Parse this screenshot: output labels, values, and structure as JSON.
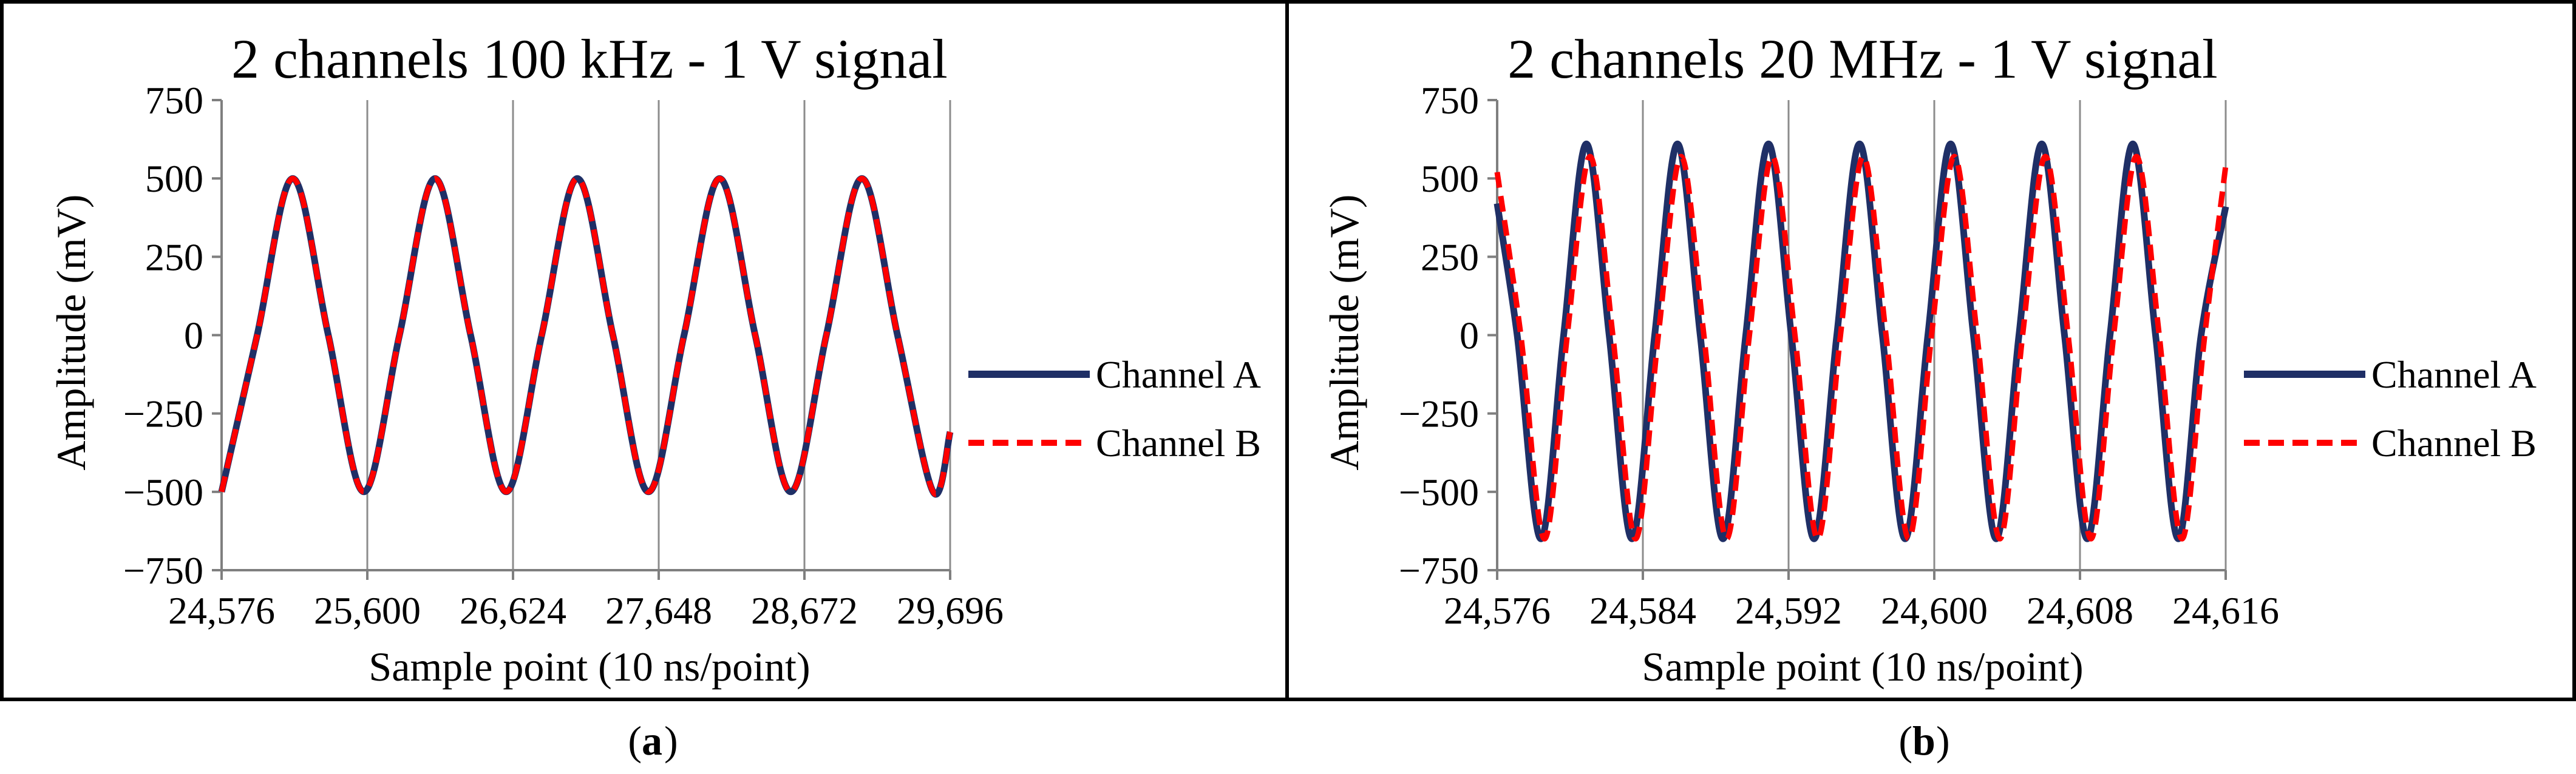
{
  "panel_labels": [
    "a",
    "b"
  ],
  "colors": {
    "channel_a": "#1f2f66",
    "channel_b": "#ff0000",
    "grid": "#8c8c8c",
    "axis": "#7f7f7f",
    "frame": "#000000"
  },
  "chart_data": [
    {
      "type": "line",
      "title": "2 channels 100 kHz - 1 V signal",
      "xlabel": "Sample point (10 ns/point)",
      "ylabel": "Amplitude  (mV)",
      "xlim": [
        24576,
        29696
      ],
      "ylim": [
        -750,
        750
      ],
      "x_ticks": [
        24576,
        25600,
        26624,
        27648,
        28672,
        29696
      ],
      "x_tick_labels": [
        "24,576",
        "25,600",
        "26,624",
        "27,648",
        "28,672",
        "29,696"
      ],
      "y_ticks": [
        750,
        500,
        250,
        0,
        -250,
        -500,
        -750
      ],
      "y_tick_labels": [
        "750",
        "500",
        "250",
        "0",
        "−250",
        "−500",
        "−750"
      ],
      "grid": "vertical",
      "legend": "right",
      "series": [
        {
          "name": "Channel A",
          "color": "#1f2f66",
          "style": "solid",
          "x": [
            24576,
            24826,
            25076,
            25326,
            25576,
            25826,
            26076,
            26326,
            26576,
            26826,
            27076,
            27326,
            27576,
            27826,
            28076,
            28326,
            28576,
            28826,
            29076,
            29326,
            29576,
            29696
          ],
          "y": [
            -500,
            0,
            500,
            0,
            -500,
            0,
            500,
            0,
            -500,
            0,
            500,
            0,
            -500,
            0,
            500,
            0,
            -500,
            0,
            500,
            0,
            -500,
            -309
          ]
        },
        {
          "name": "Channel B",
          "color": "#ff0000",
          "style": "dashed",
          "x": [
            24576,
            24826,
            25076,
            25326,
            25576,
            25826,
            26076,
            26326,
            26576,
            26826,
            27076,
            27326,
            27576,
            27826,
            28076,
            28326,
            28576,
            28826,
            29076,
            29326,
            29576,
            29696
          ],
          "y": [
            -500,
            0,
            500,
            0,
            -500,
            0,
            500,
            0,
            -500,
            0,
            500,
            0,
            -500,
            0,
            500,
            0,
            -500,
            0,
            500,
            0,
            -500,
            -309
          ]
        }
      ]
    },
    {
      "type": "line",
      "title": "2 channels 20 MHz - 1 V signal",
      "xlabel": "Sample point (10 ns/point)",
      "ylabel": "Amplitude  (mV)",
      "xlim": [
        24576,
        24616
      ],
      "ylim": [
        -750,
        750
      ],
      "x_ticks": [
        24576,
        24584,
        24592,
        24600,
        24608,
        24616
      ],
      "x_tick_labels": [
        "24,576",
        "24,584",
        "24,592",
        "24,600",
        "24,608",
        "24,616"
      ],
      "y_ticks": [
        750,
        500,
        250,
        0,
        -250,
        -500,
        -750
      ],
      "y_tick_labels": [
        "750",
        "500",
        "250",
        "0",
        "−250",
        "−500",
        "−750"
      ],
      "grid": "vertical",
      "legend": "right",
      "series": [
        {
          "name": "Channel A",
          "color": "#1f2f66",
          "style": "solid",
          "x": [
            24576.0,
            24577.1,
            24578.4,
            24579.65,
            24580.9,
            24582.15,
            24583.4,
            24584.65,
            24585.9,
            24587.15,
            24588.4,
            24589.65,
            24590.9,
            24592.15,
            24593.4,
            24594.65,
            24595.9,
            24597.15,
            24598.4,
            24599.65,
            24600.9,
            24602.15,
            24603.4,
            24604.65,
            24605.9,
            24607.15,
            24608.4,
            24609.65,
            24610.9,
            24612.15,
            24613.4,
            24614.65,
            24616.0
          ],
          "y": [
            420,
            0,
            -650,
            0,
            610,
            0,
            -650,
            0,
            610,
            0,
            -650,
            0,
            610,
            0,
            -650,
            0,
            610,
            0,
            -650,
            0,
            610,
            0,
            -650,
            0,
            610,
            0,
            -650,
            0,
            610,
            0,
            -650,
            0,
            410
          ]
        },
        {
          "name": "Channel B",
          "color": "#ff0000",
          "style": "dashed",
          "x": [
            24576.0,
            24577.3,
            24578.6,
            24579.85,
            24581.1,
            24582.35,
            24583.6,
            24584.85,
            24586.1,
            24587.35,
            24588.6,
            24589.85,
            24591.1,
            24592.35,
            24593.6,
            24594.85,
            24596.1,
            24597.35,
            24598.6,
            24599.85,
            24601.1,
            24602.35,
            24603.6,
            24604.85,
            24606.1,
            24607.35,
            24608.6,
            24609.85,
            24611.1,
            24612.35,
            24613.6,
            24614.85,
            24616.0
          ],
          "y": [
            520,
            0,
            -650,
            0,
            570,
            0,
            -650,
            0,
            570,
            0,
            -650,
            0,
            570,
            0,
            -650,
            0,
            570,
            0,
            -650,
            0,
            570,
            0,
            -650,
            0,
            570,
            0,
            -650,
            0,
            570,
            0,
            -650,
            0,
            540
          ]
        }
      ]
    }
  ]
}
